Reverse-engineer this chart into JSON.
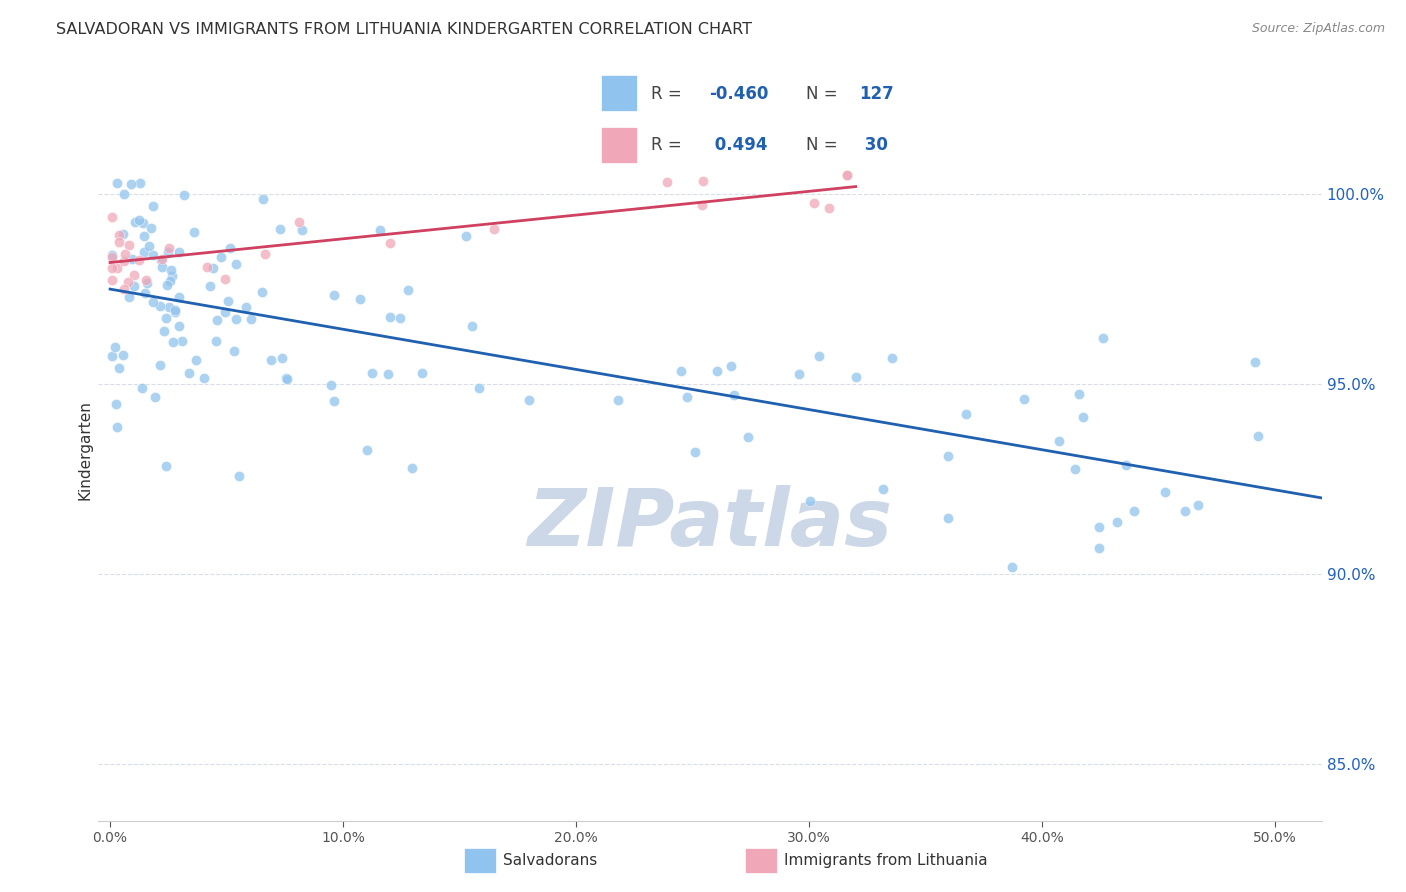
{
  "title": "SALVADORAN VS IMMIGRANTS FROM LITHUANIA KINDERGARTEN CORRELATION CHART",
  "source": "Source: ZipAtlas.com",
  "ylabel": "Kindergarten",
  "xlim": [
    -0.005,
    0.52
  ],
  "ylim": [
    0.835,
    1.03
  ],
  "y_ticks": [
    0.85,
    0.9,
    0.95,
    1.0
  ],
  "x_ticks": [
    0.0,
    0.1,
    0.2,
    0.3,
    0.4,
    0.5
  ],
  "blue_color": "#90c4ee",
  "pink_color": "#f0a8b8",
  "blue_line_color": "#2060b0",
  "pink_line_color": "#d04060",
  "blue_R": "-0.460",
  "blue_N": "127",
  "pink_R": "0.494",
  "pink_N": "30",
  "blue_label": "Salvadorans",
  "pink_label": "Immigrants from Lithuania",
  "watermark": "ZIPatlas",
  "watermark_color": "#ccd8e8",
  "grid_color": "#d8dde8",
  "y_tick_color": "#2060c0",
  "x_tick_color": "#555555",
  "background_color": "#ffffff",
  "scatter_size": 55,
  "scatter_alpha": 0.75,
  "line_width": 2.0,
  "blue_line_x0": 0.0,
  "blue_line_x1": 0.52,
  "blue_line_y0": 0.975,
  "blue_line_y1": 0.92,
  "pink_line_x0": 0.0,
  "pink_line_x1": 0.32,
  "pink_line_y0": 0.982,
  "pink_line_y1": 1.002
}
